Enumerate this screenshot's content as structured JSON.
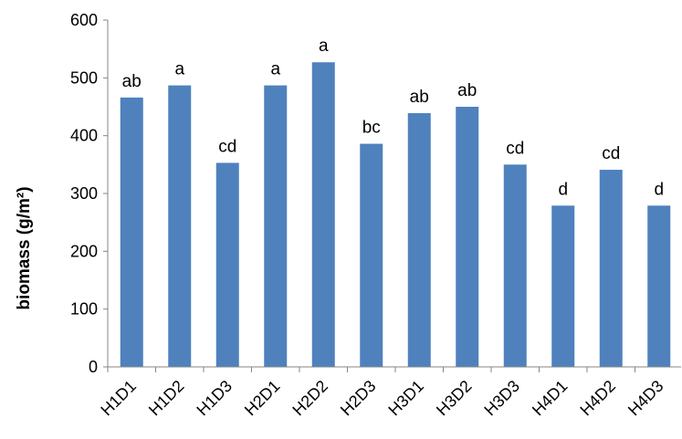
{
  "chart_data": {
    "type": "bar",
    "title": "",
    "xlabel": "",
    "ylabel": "biomass (g/m²)",
    "ylim": [
      0,
      600
    ],
    "yticks": [
      "0",
      "100",
      "200",
      "300",
      "400",
      "500",
      "600"
    ],
    "grid": false,
    "legend": "none",
    "bar_color": "#4F81BD",
    "categories": [
      "H1D1",
      "H1D2",
      "H1D3",
      "H2D1",
      "H2D2",
      "H2D3",
      "H3D1",
      "H3D2",
      "H3D3",
      "H4D1",
      "H4D2",
      "H4D3"
    ],
    "values": [
      466,
      487,
      353,
      487,
      527,
      386,
      439,
      450,
      350,
      279,
      341,
      279
    ],
    "data_labels": [
      "ab",
      "a",
      "cd",
      "a",
      "a",
      "bc",
      "ab",
      "ab",
      "cd",
      "d",
      "cd",
      "d"
    ]
  }
}
